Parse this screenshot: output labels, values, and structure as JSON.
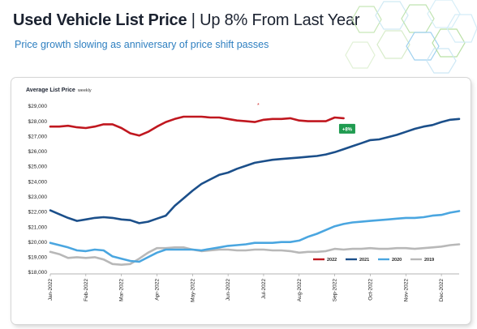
{
  "header": {
    "title_bold": "Used Vehicle List Price",
    "title_rest": " | Up 8% From Last Year",
    "subtitle": "Price growth slowing as anniversary of price shift passes"
  },
  "colors": {
    "title": "#1b2230",
    "subtitle": "#2e7fc0",
    "badge": "#1f9b50",
    "annotation_star": "#d12b2b"
  },
  "chart_data": {
    "type": "line",
    "ylabel": "Average List Price",
    "ylabel_unit": "weekly",
    "ylim": [
      18000,
      29000
    ],
    "yticks": [
      18000,
      19000,
      20000,
      21000,
      22000,
      23000,
      24000,
      25000,
      26000,
      27000,
      28000,
      29000
    ],
    "ytick_labels": [
      "$18,000",
      "$19,000",
      "$20,000",
      "$21,000",
      "$22,000",
      "$23,000",
      "$24,000",
      "$25,000",
      "$26,000",
      "$27,000",
      "$28,000",
      "$29,000"
    ],
    "xticks": [
      "Jan-2022",
      "Feb-2022",
      "Mar-2022",
      "Apr-2022",
      "May-2022",
      "Jun-2022",
      "Jul-2022",
      "Aug-2022",
      "Sep-2022",
      "Oct-2022",
      "Nov-2022",
      "Dec-2022"
    ],
    "xlim": [
      0,
      11.5
    ],
    "grid": false,
    "legend_position": "bottom-right",
    "annotations": [
      {
        "text": "+8%",
        "x": 8.35,
        "y": 27450,
        "style": "badge"
      },
      {
        "text": "*",
        "x": 5.85,
        "y": 28950,
        "style": "star"
      }
    ],
    "series": [
      {
        "name": "2022",
        "color": "#c0171f",
        "x": [
          0,
          0.25,
          0.5,
          0.75,
          1.0,
          1.25,
          1.5,
          1.75,
          2.0,
          2.25,
          2.5,
          2.75,
          3.0,
          3.25,
          3.5,
          3.75,
          4.0,
          4.25,
          4.5,
          4.75,
          5.0,
          5.25,
          5.5,
          5.75,
          6.0,
          6.25,
          6.5,
          6.75,
          7.0,
          7.25,
          7.5,
          7.75,
          8.0,
          8.25
        ],
        "y": [
          27650,
          27650,
          27700,
          27600,
          27550,
          27650,
          27800,
          27800,
          27550,
          27200,
          27050,
          27300,
          27650,
          27950,
          28150,
          28300,
          28300,
          28300,
          28250,
          28250,
          28150,
          28050,
          28000,
          27950,
          28100,
          28150,
          28150,
          28200,
          28050,
          28000,
          28000,
          28000,
          28250,
          28200
        ]
      },
      {
        "name": "2021",
        "color": "#1b4f8a",
        "x": [
          0,
          0.25,
          0.5,
          0.75,
          1.0,
          1.25,
          1.5,
          1.75,
          2.0,
          2.25,
          2.5,
          2.75,
          3.0,
          3.25,
          3.5,
          3.75,
          4.0,
          4.25,
          4.5,
          4.75,
          5.0,
          5.25,
          5.5,
          5.75,
          6.0,
          6.25,
          6.5,
          6.75,
          7.0,
          7.25,
          7.5,
          7.75,
          8.0,
          8.25,
          8.5,
          8.75,
          9.0,
          9.25,
          9.5,
          9.75,
          10.0,
          10.25,
          10.5,
          10.75,
          11.0,
          11.25,
          11.5
        ],
        "y": [
          22100,
          21850,
          21600,
          21400,
          21500,
          21600,
          21650,
          21600,
          21500,
          21450,
          21250,
          21350,
          21550,
          21750,
          22400,
          22900,
          23400,
          23850,
          24150,
          24450,
          24600,
          24850,
          25050,
          25250,
          25350,
          25450,
          25500,
          25550,
          25600,
          25650,
          25700,
          25800,
          25950,
          26150,
          26350,
          26550,
          26750,
          26800,
          26950,
          27100,
          27300,
          27500,
          27650,
          27750,
          27950,
          28100,
          28150
        ]
      },
      {
        "name": "2020",
        "color": "#4aa6e0",
        "x": [
          0,
          0.25,
          0.5,
          0.75,
          1.0,
          1.25,
          1.5,
          1.75,
          2.0,
          2.25,
          2.5,
          2.75,
          3.0,
          3.25,
          3.5,
          3.75,
          4.0,
          4.25,
          4.5,
          4.75,
          5.0,
          5.25,
          5.5,
          5.75,
          6.0,
          6.25,
          6.5,
          6.75,
          7.0,
          7.25,
          7.5,
          7.75,
          8.0,
          8.25,
          8.5,
          8.75,
          9.0,
          9.25,
          9.5,
          9.75,
          10.0,
          10.25,
          10.5,
          10.75,
          11.0,
          11.25,
          11.5
        ],
        "y": [
          19950,
          19800,
          19650,
          19450,
          19400,
          19500,
          19450,
          19050,
          18900,
          18750,
          18700,
          19000,
          19300,
          19500,
          19500,
          19500,
          19500,
          19450,
          19550,
          19650,
          19750,
          19800,
          19850,
          19950,
          19950,
          19950,
          20000,
          20000,
          20100,
          20350,
          20550,
          20800,
          21050,
          21200,
          21300,
          21350,
          21400,
          21450,
          21500,
          21550,
          21600,
          21600,
          21650,
          21750,
          21800,
          21950,
          22050
        ]
      },
      {
        "name": "2019",
        "color": "#b8b8b8",
        "x": [
          0,
          0.25,
          0.5,
          0.75,
          1.0,
          1.25,
          1.5,
          1.75,
          2.0,
          2.25,
          2.5,
          2.75,
          3.0,
          3.25,
          3.5,
          3.75,
          4.0,
          4.25,
          4.5,
          4.75,
          5.0,
          5.25,
          5.5,
          5.75,
          6.0,
          6.25,
          6.5,
          6.75,
          7.0,
          7.25,
          7.5,
          7.75,
          8.0,
          8.25,
          8.5,
          8.75,
          9.0,
          9.25,
          9.5,
          9.75,
          10.0,
          10.25,
          10.5,
          10.75,
          11.0,
          11.25,
          11.5
        ],
        "y": [
          19350,
          19200,
          18950,
          19000,
          18950,
          19000,
          18850,
          18550,
          18500,
          18550,
          18900,
          19300,
          19600,
          19600,
          19650,
          19650,
          19500,
          19400,
          19450,
          19500,
          19500,
          19450,
          19450,
          19500,
          19500,
          19450,
          19450,
          19400,
          19300,
          19350,
          19350,
          19400,
          19550,
          19500,
          19550,
          19550,
          19600,
          19550,
          19550,
          19600,
          19600,
          19550,
          19600,
          19650,
          19700,
          19800,
          19850
        ]
      }
    ]
  }
}
